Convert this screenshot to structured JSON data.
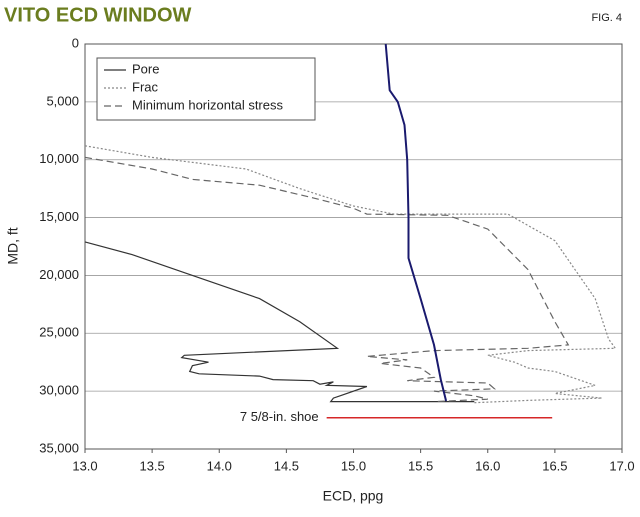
{
  "chart_data": {
    "type": "line",
    "title": "VITO ECD WINDOW",
    "figure_label": "FIG. 4",
    "x_label": "ECD, ppg",
    "y_label": "MD, ft",
    "xlim": [
      13.0,
      17.0
    ],
    "ylim": [
      0,
      35000
    ],
    "y_inverted": true,
    "grid": true,
    "xticks": [
      {
        "value": 13,
        "label": "13.0"
      },
      {
        "value": 13.5,
        "label": "13.5"
      },
      {
        "value": 14,
        "label": "14.0"
      },
      {
        "value": 14.5,
        "label": "14.5"
      },
      {
        "value": 15,
        "label": "15.0"
      },
      {
        "value": 15.5,
        "label": "15.5"
      },
      {
        "value": 16,
        "label": "16.0"
      },
      {
        "value": 16.5,
        "label": "16.5"
      },
      {
        "value": 17,
        "label": "17.0"
      }
    ],
    "yticks": [
      0,
      {
        "value": 5000,
        "label": "5,000"
      },
      {
        "value": 10000,
        "label": "10,000"
      },
      {
        "value": 15000,
        "label": "15,000"
      },
      {
        "value": 20000,
        "label": "20,000"
      },
      {
        "value": 25000,
        "label": "25,000"
      },
      {
        "value": 30000,
        "label": "30,000"
      },
      {
        "value": 35000,
        "label": "35,000"
      }
    ],
    "legend_position": "upper-left",
    "series": [
      {
        "name": "Pore",
        "color": "#333333",
        "dash": "solid",
        "width": 1.2,
        "x": [
          13.0,
          13.35,
          13.8,
          14.3,
          14.6,
          14.88,
          13.74,
          13.72,
          13.92,
          13.8,
          13.78,
          13.85,
          14.3,
          14.4,
          14.7,
          14.75,
          14.85,
          14.8,
          15.1,
          14.9,
          14.85,
          14.83,
          15.9
        ],
        "values": [
          17100,
          18200,
          20000,
          22000,
          24000,
          26300,
          26900,
          27100,
          27500,
          27800,
          28300,
          28500,
          28700,
          29000,
          29100,
          29400,
          29200,
          29500,
          29600,
          30400,
          30600,
          30900,
          30900
        ]
      },
      {
        "name": "Frac",
        "color": "#888888",
        "dash": "dotted",
        "width": 1.2,
        "x": [
          13.0,
          13.5,
          14.2,
          14.6,
          15.0,
          15.3,
          16.15,
          16.5,
          16.8,
          16.9,
          16.95,
          16.3,
          16.0,
          16.2,
          16.3,
          16.5,
          16.8,
          16.5,
          16.85,
          16.3,
          15.9
        ],
        "values": [
          8800,
          9800,
          10800,
          12500,
          14000,
          14700,
          14700,
          17000,
          22000,
          25500,
          26300,
          26500,
          26900,
          27500,
          28000,
          28300,
          29500,
          30200,
          30600,
          30800,
          31000
        ]
      },
      {
        "name": "Minimum horizontal stress",
        "color": "#666666",
        "dash": "dashed",
        "width": 1.2,
        "x": [
          13.0,
          13.5,
          13.8,
          14.3,
          14.7,
          15.0,
          15.1,
          15.7,
          16.0,
          16.3,
          16.5,
          16.6,
          16.3,
          15.6,
          15.1,
          15.4,
          15.2,
          15.5,
          15.6,
          15.4,
          16.0,
          16.05,
          15.6,
          15.9,
          16.0,
          15.6
        ],
        "values": [
          9800,
          10800,
          11700,
          12200,
          13300,
          14200,
          14700,
          14800,
          16000,
          19500,
          24000,
          26000,
          26300,
          26500,
          27000,
          27300,
          27600,
          28000,
          28800,
          29100,
          29300,
          29800,
          30000,
          30400,
          30700,
          30900
        ]
      },
      {
        "color": "#1a1a6e",
        "dash": "solid",
        "width": 2,
        "x": [
          15.24,
          15.27,
          15.33,
          15.38,
          15.4,
          15.41,
          15.41,
          15.5,
          15.6,
          15.65,
          15.69
        ],
        "values": [
          0,
          4000,
          5000,
          7000,
          10000,
          15000,
          18500,
          22000,
          26000,
          29000,
          30850
        ]
      }
    ],
    "annotations": [
      {
        "text": "7 5/8-in. shoe",
        "color": "#d62728",
        "x": [
          14.8,
          16.48
        ],
        "y": 32300
      }
    ]
  }
}
